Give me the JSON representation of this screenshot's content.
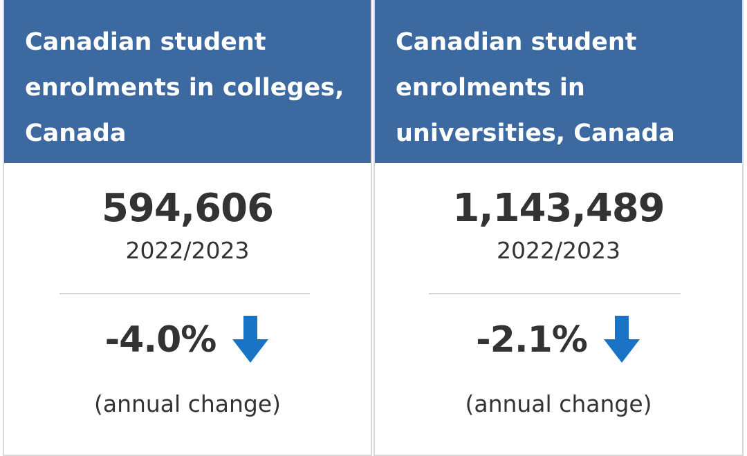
{
  "cards": [
    {
      "title_lines": [
        "Canadian student",
        "enrolments in colleges,",
        "Canada"
      ],
      "value": "594,606",
      "period": "2022/2023",
      "change": "-4.0%",
      "change_direction": "down-arrow-icon",
      "note": "(annual change)"
    },
    {
      "title_lines": [
        "Canadian student",
        "enrolments in",
        "universities, Canada"
      ],
      "value": "1,143,489",
      "period": "2022/2023",
      "change": "-2.1%",
      "change_direction": "down-arrow-icon",
      "note": "(annual change)"
    }
  ],
  "colors": {
    "header_bg": "#3c6aa0",
    "header_text": "#ffffff",
    "arrow": "#1a73c5",
    "text": "#333333"
  }
}
